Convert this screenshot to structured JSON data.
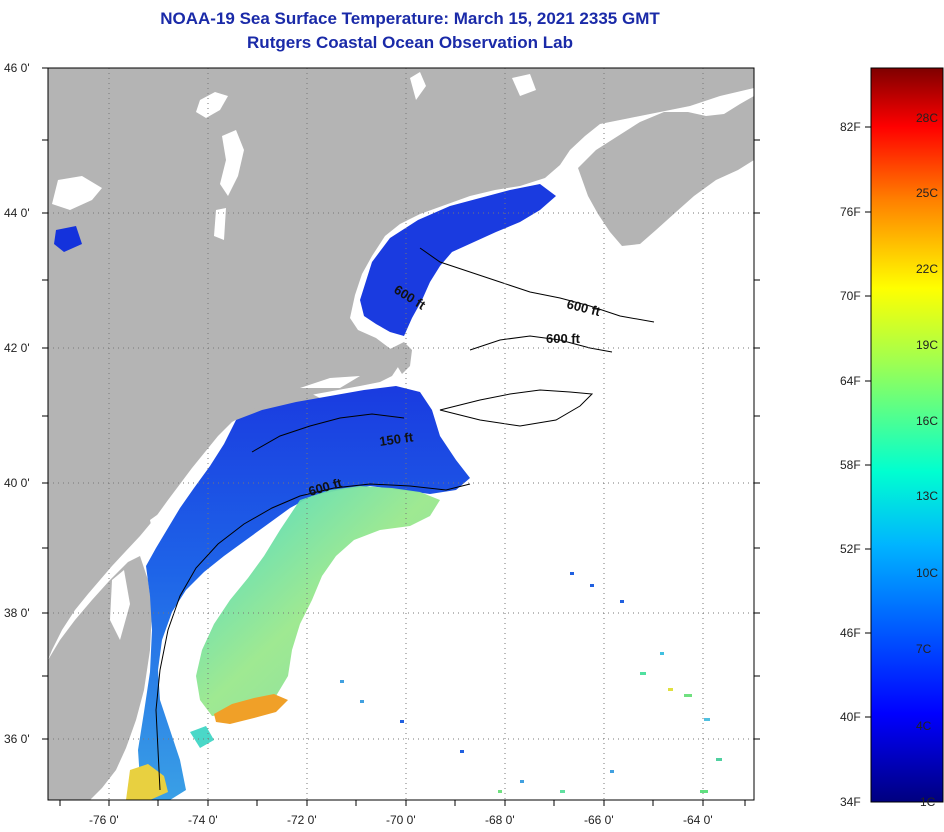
{
  "title": "NOAA-19 Sea Surface Temperature:  March 15, 2021 2335 GMT",
  "subtitle": "Rutgers Coastal Ocean Observation Lab",
  "map": {
    "lat_labels": [
      "46 0'",
      "44 0'",
      "42 0'",
      "40 0'",
      "38 0'",
      "36 0'"
    ],
    "lon_labels": [
      "-76 0'",
      "-74 0'",
      "-72 0'",
      "-70 0'",
      "-68 0'",
      "-66 0'",
      "-64 0'"
    ],
    "contours": [
      "600 ft",
      "600 ft",
      "600 ft",
      "150 ft",
      "600 ft"
    ],
    "colors": {
      "land": "#b4b4b4",
      "cloud": "#ffffff",
      "cold": "#1432dc",
      "warm": "#f0a028"
    }
  },
  "colorbar": {
    "fahrenheit": [
      "82F",
      "76F",
      "70F",
      "64F",
      "58F",
      "52F",
      "46F",
      "40F",
      "34F"
    ],
    "celsius": [
      "28C",
      "25C",
      "22C",
      "19C",
      "16C",
      "13C",
      "10C",
      "7C",
      "4C",
      "1C"
    ]
  }
}
